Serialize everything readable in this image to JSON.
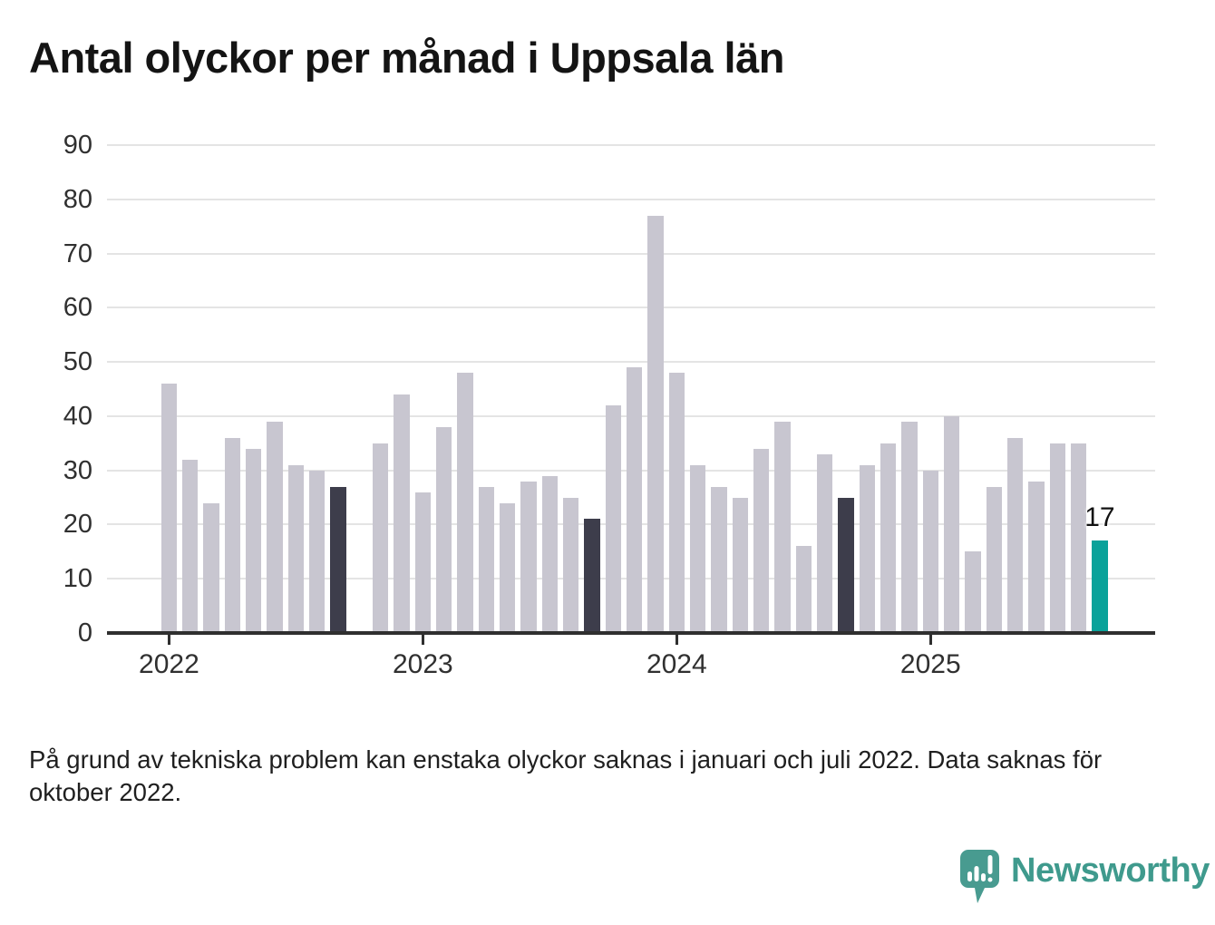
{
  "title": "Antal olyckor per månad i Uppsala län",
  "footnote": "På grund av tekniska problem kan enstaka olyckor saknas i januari och juli 2022. Data saknas för oktober 2022.",
  "branding": {
    "name": "Newsworthy",
    "logo_icon": "speech-bubble-bar-chart-icon"
  },
  "colors": {
    "bar_default": "#c8c6d0",
    "bar_september": "#3d3d4b",
    "bar_latest": "#0aa29a",
    "gridline": "#e4e4e4",
    "axis": "#2f2f2f",
    "logo_teal": "#489b90",
    "logo_text_teal": "#3f9a8d"
  },
  "chart_data": {
    "type": "bar",
    "title": "Antal olyckor per månad i Uppsala län",
    "xlabel": "",
    "ylabel": "",
    "ylim": [
      0,
      90
    ],
    "y_ticks": [
      0,
      10,
      20,
      30,
      40,
      50,
      60,
      70,
      80,
      90
    ],
    "grid": "horizontal",
    "legend_position": "none",
    "x_tick_labels": [
      "2022",
      "2023",
      "2024",
      "2025"
    ],
    "annotation": {
      "text": "17",
      "attached_to": "2025-09"
    },
    "months": [
      {
        "label": "2022-01",
        "value": 46,
        "highlight": "default"
      },
      {
        "label": "2022-02",
        "value": 32,
        "highlight": "default"
      },
      {
        "label": "2022-03",
        "value": 24,
        "highlight": "default"
      },
      {
        "label": "2022-04",
        "value": 36,
        "highlight": "default"
      },
      {
        "label": "2022-05",
        "value": 34,
        "highlight": "default"
      },
      {
        "label": "2022-06",
        "value": 39,
        "highlight": "default"
      },
      {
        "label": "2022-07",
        "value": 31,
        "highlight": "default"
      },
      {
        "label": "2022-08",
        "value": 30,
        "highlight": "default"
      },
      {
        "label": "2022-09",
        "value": 27,
        "highlight": "september"
      },
      {
        "label": "2022-10",
        "value": null,
        "highlight": "missing"
      },
      {
        "label": "2022-11",
        "value": 35,
        "highlight": "default"
      },
      {
        "label": "2022-12",
        "value": 44,
        "highlight": "default"
      },
      {
        "label": "2023-01",
        "value": 26,
        "highlight": "default"
      },
      {
        "label": "2023-02",
        "value": 38,
        "highlight": "default"
      },
      {
        "label": "2023-03",
        "value": 48,
        "highlight": "default"
      },
      {
        "label": "2023-04",
        "value": 27,
        "highlight": "default"
      },
      {
        "label": "2023-05",
        "value": 24,
        "highlight": "default"
      },
      {
        "label": "2023-06",
        "value": 28,
        "highlight": "default"
      },
      {
        "label": "2023-07",
        "value": 29,
        "highlight": "default"
      },
      {
        "label": "2023-08",
        "value": 25,
        "highlight": "default"
      },
      {
        "label": "2023-09",
        "value": 21,
        "highlight": "september"
      },
      {
        "label": "2023-10",
        "value": 42,
        "highlight": "default"
      },
      {
        "label": "2023-11",
        "value": 49,
        "highlight": "default"
      },
      {
        "label": "2023-12",
        "value": 77,
        "highlight": "default"
      },
      {
        "label": "2024-01",
        "value": 48,
        "highlight": "default"
      },
      {
        "label": "2024-02",
        "value": 31,
        "highlight": "default"
      },
      {
        "label": "2024-03",
        "value": 27,
        "highlight": "default"
      },
      {
        "label": "2024-04",
        "value": 25,
        "highlight": "default"
      },
      {
        "label": "2024-05",
        "value": 34,
        "highlight": "default"
      },
      {
        "label": "2024-06",
        "value": 39,
        "highlight": "default"
      },
      {
        "label": "2024-07",
        "value": 16,
        "highlight": "default"
      },
      {
        "label": "2024-08",
        "value": 33,
        "highlight": "default"
      },
      {
        "label": "2024-09",
        "value": 25,
        "highlight": "september"
      },
      {
        "label": "2024-10",
        "value": 31,
        "highlight": "default"
      },
      {
        "label": "2024-11",
        "value": 35,
        "highlight": "default"
      },
      {
        "label": "2024-12",
        "value": 39,
        "highlight": "default"
      },
      {
        "label": "2025-01",
        "value": 30,
        "highlight": "default"
      },
      {
        "label": "2025-02",
        "value": 40,
        "highlight": "default"
      },
      {
        "label": "2025-03",
        "value": 15,
        "highlight": "default"
      },
      {
        "label": "2025-04",
        "value": 27,
        "highlight": "default"
      },
      {
        "label": "2025-05",
        "value": 36,
        "highlight": "default"
      },
      {
        "label": "2025-06",
        "value": 28,
        "highlight": "default"
      },
      {
        "label": "2025-07",
        "value": 35,
        "highlight": "default"
      },
      {
        "label": "2025-08",
        "value": 35,
        "highlight": "default"
      },
      {
        "label": "2025-09",
        "value": 17,
        "highlight": "latest"
      }
    ]
  }
}
